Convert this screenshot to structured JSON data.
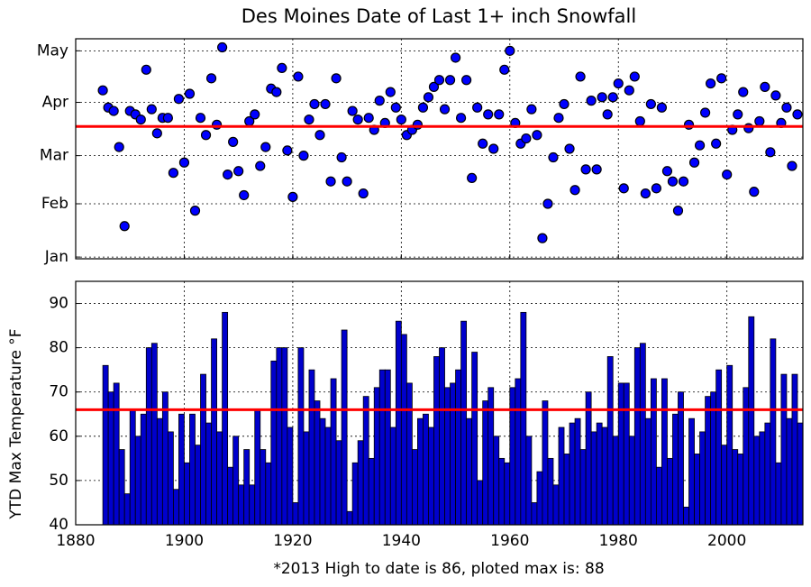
{
  "chart_data": [
    {
      "type": "scatter",
      "title": "Des Moines Date of Last 1+ inch Snowfall",
      "x": [
        1885,
        1886,
        1887,
        1888,
        1889,
        1890,
        1891,
        1892,
        1893,
        1894,
        1895,
        1896,
        1897,
        1898,
        1899,
        1900,
        1901,
        1902,
        1903,
        1904,
        1905,
        1906,
        1907,
        1908,
        1909,
        1910,
        1911,
        1912,
        1913,
        1914,
        1915,
        1916,
        1917,
        1918,
        1919,
        1920,
        1921,
        1922,
        1923,
        1924,
        1925,
        1926,
        1927,
        1928,
        1929,
        1930,
        1931,
        1932,
        1933,
        1934,
        1935,
        1936,
        1937,
        1938,
        1939,
        1940,
        1941,
        1942,
        1943,
        1944,
        1945,
        1946,
        1947,
        1948,
        1949,
        1950,
        1951,
        1952,
        1953,
        1954,
        1955,
        1956,
        1957,
        1958,
        1959,
        1960,
        1961,
        1962,
        1963,
        1964,
        1965,
        1966,
        1967,
        1968,
        1969,
        1970,
        1971,
        1972,
        1973,
        1974,
        1975,
        1976,
        1977,
        1978,
        1979,
        1980,
        1981,
        1982,
        1983,
        1984,
        1985,
        1986,
        1987,
        1988,
        1989,
        1990,
        1991,
        1992,
        1993,
        1994,
        1995,
        1996,
        1997,
        1998,
        1999,
        2000,
        2001,
        2002,
        2003,
        2004,
        2005,
        2006,
        2007,
        2008,
        2009,
        2010,
        2011,
        2012,
        2013
      ],
      "values": [
        98,
        88,
        86,
        65,
        19,
        86,
        84,
        81,
        110,
        87,
        73,
        82,
        82,
        50,
        93,
        56,
        96,
        28,
        82,
        72,
        105,
        78,
        123,
        49,
        68,
        51,
        37,
        80,
        84,
        54,
        65,
        99,
        97,
        111,
        63,
        36,
        106,
        60,
        81,
        90,
        72,
        90,
        45,
        105,
        59,
        45,
        86,
        81,
        38,
        82,
        75,
        92,
        79,
        97,
        88,
        81,
        72,
        75,
        78,
        88,
        94,
        100,
        104,
        87,
        104,
        117,
        82,
        104,
        47,
        88,
        67,
        84,
        64,
        84,
        110,
        121,
        79,
        67,
        70,
        87,
        72,
        12,
        32,
        59,
        82,
        90,
        64,
        40,
        106,
        52,
        92,
        52,
        94,
        84,
        94,
        102,
        41,
        98,
        106,
        80,
        38,
        90,
        41,
        88,
        51,
        45,
        28,
        45,
        78,
        56,
        66,
        85,
        102,
        67,
        105,
        49,
        75,
        84,
        97,
        76,
        39,
        80,
        100,
        62,
        95,
        79,
        88,
        54,
        84
      ],
      "color": "#0000ff",
      "hline": {
        "value": 77,
        "color": "#ff0000"
      },
      "xlim": [
        1880,
        2014
      ],
      "xticks": [
        1880,
        1900,
        1920,
        1940,
        1960,
        1980,
        2000
      ],
      "ylim": [
        0,
        128
      ],
      "yticks": [
        {
          "value": 1,
          "label": "Jan"
        },
        {
          "value": 32,
          "label": "Feb"
        },
        {
          "value": 60,
          "label": "Mar"
        },
        {
          "value": 91,
          "label": "Apr"
        },
        {
          "value": 121,
          "label": "May"
        }
      ],
      "grid": true
    },
    {
      "type": "bar",
      "xlabel": "*2013 High to date is 86, ploted max is: 88",
      "ylabel": "YTD Max Temperature °F",
      "x": [
        1885,
        1886,
        1887,
        1888,
        1889,
        1890,
        1891,
        1892,
        1893,
        1894,
        1895,
        1896,
        1897,
        1898,
        1899,
        1900,
        1901,
        1902,
        1903,
        1904,
        1905,
        1906,
        1907,
        1908,
        1909,
        1910,
        1911,
        1912,
        1913,
        1914,
        1915,
        1916,
        1917,
        1918,
        1919,
        1920,
        1921,
        1922,
        1923,
        1924,
        1925,
        1926,
        1927,
        1928,
        1929,
        1930,
        1931,
        1932,
        1933,
        1934,
        1935,
        1936,
        1937,
        1938,
        1939,
        1940,
        1941,
        1942,
        1943,
        1944,
        1945,
        1946,
        1947,
        1948,
        1949,
        1950,
        1951,
        1952,
        1953,
        1954,
        1955,
        1956,
        1957,
        1958,
        1959,
        1960,
        1961,
        1962,
        1963,
        1964,
        1965,
        1966,
        1967,
        1968,
        1969,
        1970,
        1971,
        1972,
        1973,
        1974,
        1975,
        1976,
        1977,
        1978,
        1979,
        1980,
        1981,
        1982,
        1983,
        1984,
        1985,
        1986,
        1987,
        1988,
        1989,
        1990,
        1991,
        1992,
        1993,
        1994,
        1995,
        1996,
        1997,
        1998,
        1999,
        2000,
        2001,
        2002,
        2003,
        2004,
        2005,
        2006,
        2007,
        2008,
        2009,
        2010,
        2011,
        2012,
        2013
      ],
      "values": [
        76,
        70,
        72,
        57,
        47,
        66,
        60,
        65,
        80,
        81,
        64,
        70,
        61,
        48,
        65,
        54,
        65,
        58,
        74,
        63,
        82,
        61,
        88,
        53,
        60,
        49,
        57,
        49,
        66,
        57,
        54,
        77,
        80,
        80,
        62,
        45,
        80,
        61,
        75,
        68,
        64,
        62,
        73,
        59,
        84,
        43,
        54,
        59,
        69,
        55,
        71,
        75,
        75,
        62,
        86,
        83,
        72,
        57,
        64,
        65,
        62,
        78,
        80,
        71,
        72,
        75,
        86,
        64,
        79,
        50,
        68,
        71,
        60,
        55,
        54,
        71,
        73,
        88,
        60,
        45,
        52,
        68,
        55,
        49,
        62,
        56,
        63,
        64,
        57,
        70,
        61,
        63,
        62,
        78,
        60,
        72,
        72,
        60,
        80,
        81,
        64,
        73,
        53,
        73,
        55,
        65,
        70,
        44,
        64,
        56,
        61,
        69,
        70,
        75,
        58,
        76,
        57,
        56,
        71,
        87,
        60,
        61,
        63,
        82,
        54,
        74,
        64,
        74,
        63
      ],
      "color": "#0000cc",
      "hline": {
        "value": 66,
        "color": "#ff0000"
      },
      "xlim": [
        1880,
        2014
      ],
      "xticks": [
        1880,
        1900,
        1920,
        1940,
        1960,
        1980,
        2000
      ],
      "ylim": [
        40,
        95
      ],
      "yticks": [
        40,
        50,
        60,
        70,
        80,
        90
      ],
      "grid": true
    }
  ]
}
